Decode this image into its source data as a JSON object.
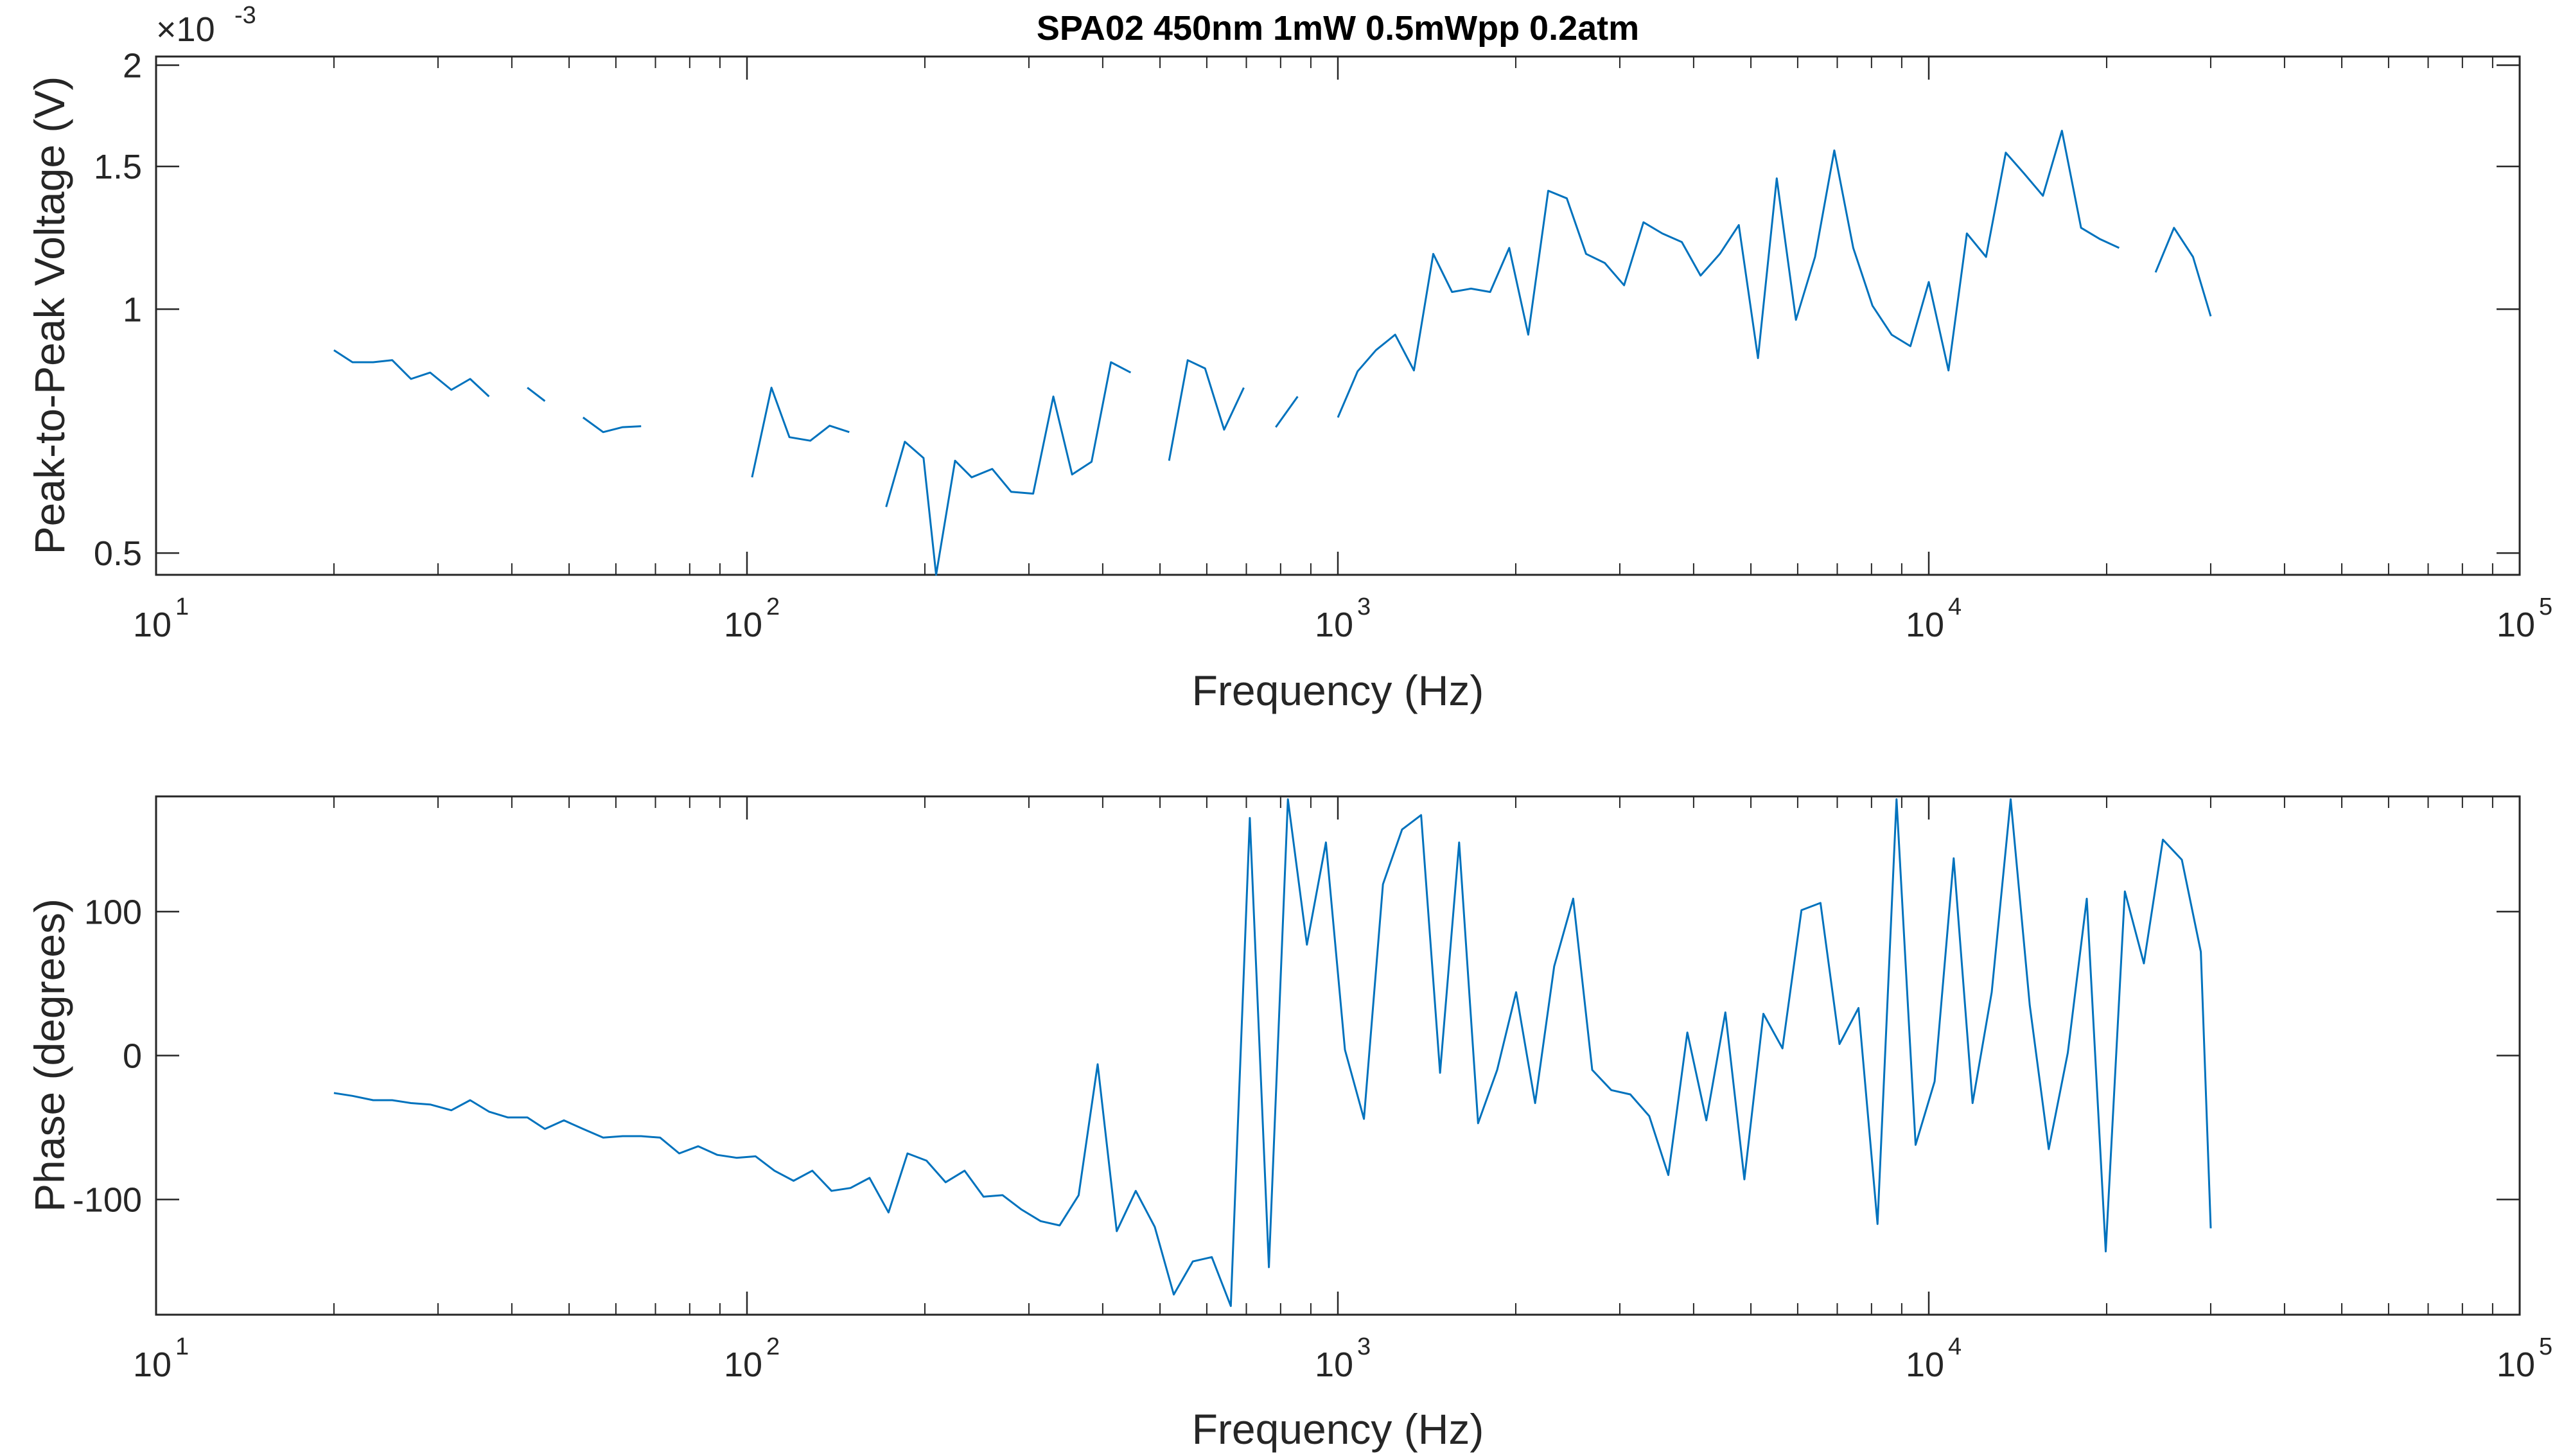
{
  "chart_data": [
    {
      "type": "line",
      "title": "SPA02 450nm 1mW 0.5mWpp 0.2atm",
      "xlabel": "Frequency (Hz)",
      "ylabel": "Peak-to-Peak Voltage (V)",
      "xscale": "log",
      "yscale": "log",
      "exponent_label": "×10",
      "exponent_value": "-3",
      "xlim": [
        10,
        100000
      ],
      "ylim": [
        0.00047,
        0.00205
      ],
      "xticks": [
        10,
        100,
        1000,
        10000,
        100000
      ],
      "xtick_base": "10",
      "xtick_exponents": [
        "1",
        "2",
        "3",
        "4",
        "5"
      ],
      "yticks": [
        0.0005,
        0.001,
        0.0015,
        0.002
      ],
      "ytick_labels": [
        "0.5",
        "1",
        "1.5",
        "2"
      ],
      "grid": false,
      "line_color": "#0072BD",
      "segments": [
        [
          [
            20,
            0.00089
          ],
          [
            21.5,
            0.00086
          ],
          [
            23.3,
            0.00086
          ],
          [
            25.1,
            0.000865
          ],
          [
            27,
            0.00082
          ],
          [
            29.1,
            0.000835
          ],
          [
            31.6,
            0.000795
          ],
          [
            34,
            0.00082
          ],
          [
            36.6,
            0.00078
          ]
        ],
        [
          [
            42.5,
            0.0008
          ],
          [
            45.5,
            0.00077
          ]
        ],
        [
          [
            52.8,
            0.000735
          ],
          [
            57.1,
            0.000705
          ],
          [
            61.6,
            0.000715
          ],
          [
            66.2,
            0.000717
          ]
        ],
        [
          [
            102,
            0.00062
          ],
          [
            110,
            0.0008
          ],
          [
            118,
            0.000695
          ],
          [
            128,
            0.000688
          ],
          [
            138,
            0.000718
          ],
          [
            149,
            0.000705
          ]
        ],
        [
          [
            172,
            0.00057
          ],
          [
            185,
            0.000686
          ],
          [
            199,
            0.000655
          ],
          [
            209,
            0.00047
          ],
          [
            225,
            0.00065
          ],
          [
            240,
            0.00062
          ],
          [
            260,
            0.000635
          ],
          [
            280,
            0.000595
          ],
          [
            305,
            0.000592
          ],
          [
            330,
            0.00078
          ],
          [
            355,
            0.000625
          ],
          [
            383,
            0.000648
          ],
          [
            413,
            0.00086
          ],
          [
            446,
            0.000835
          ]
        ],
        [
          [
            518,
            0.00065
          ],
          [
            557,
            0.000865
          ],
          [
            596,
            0.000845
          ],
          [
            642,
            0.00071
          ],
          [
            693,
            0.0008
          ]
        ],
        [
          [
            785,
            0.000715
          ],
          [
            855,
            0.00078
          ]
        ],
        [
          [
            1000,
            0.000735
          ],
          [
            1080,
            0.000838
          ],
          [
            1160,
            0.00089
          ],
          [
            1250,
            0.00093
          ],
          [
            1345,
            0.00084
          ],
          [
            1450,
            0.00117
          ],
          [
            1560,
            0.00105
          ],
          [
            1680,
            0.00106
          ],
          [
            1810,
            0.00105
          ],
          [
            1950,
            0.00119
          ],
          [
            2100,
            0.00093
          ],
          [
            2270,
            0.0014
          ],
          [
            2440,
            0.00137
          ],
          [
            2630,
            0.00117
          ],
          [
            2830,
            0.00114
          ],
          [
            3050,
            0.00107
          ],
          [
            3290,
            0.00128
          ],
          [
            3540,
            0.00124
          ],
          [
            3820,
            0.00121
          ],
          [
            4110,
            0.0011
          ],
          [
            4430,
            0.00117
          ],
          [
            4770,
            0.00127
          ],
          [
            5140,
            0.00087
          ],
          [
            5530,
            0.00145
          ],
          [
            5960,
            0.00097
          ],
          [
            6420,
            0.00116
          ],
          [
            6920,
            0.00157
          ],
          [
            7450,
            0.00119
          ],
          [
            8030,
            0.00101
          ],
          [
            8650,
            0.00093
          ],
          [
            9310,
            0.0009
          ],
          [
            10000,
            0.00108
          ],
          [
            10800,
            0.00084
          ],
          [
            11600,
            0.00124
          ],
          [
            12500,
            0.00116
          ],
          [
            13500,
            0.00156
          ],
          [
            14500,
            0.00147
          ],
          [
            15600,
            0.00138
          ],
          [
            16800,
            0.00166
          ],
          [
            18100,
            0.00126
          ],
          [
            19500,
            0.00122
          ],
          [
            21000,
            0.00119
          ]
        ],
        [
          [
            24200,
            0.00111
          ],
          [
            26000,
            0.00126
          ],
          [
            28000,
            0.00116
          ],
          [
            30000,
            0.00098
          ]
        ]
      ]
    },
    {
      "type": "line",
      "xlabel": "Frequency (Hz)",
      "ylabel": "Phase (degrees)",
      "xscale": "log",
      "xlim": [
        10,
        100000
      ],
      "ylim": [
        -180,
        180
      ],
      "xticks": [
        10,
        100,
        1000,
        10000,
        100000
      ],
      "xtick_base": "10",
      "xtick_exponents": [
        "1",
        "2",
        "3",
        "4",
        "5"
      ],
      "yticks": [
        -100,
        0,
        100
      ],
      "ytick_labels": [
        "-100",
        "0",
        "100"
      ],
      "grid": false,
      "line_color": "#0072BD",
      "x": [
        20,
        21.5,
        23.3,
        25.1,
        27,
        29.1,
        31.6,
        34,
        36.6,
        39.4,
        42.5,
        45.5,
        49,
        52.8,
        57.1,
        61.6,
        66.2,
        71.3,
        76.8,
        82.7,
        89.1,
        96,
        103.4,
        111.3,
        119.9,
        129,
        139,
        149.7,
        161.2,
        173.6,
        186.9,
        201.3,
        216.8,
        233.5,
        251.4,
        270.8,
        291.6,
        314,
        338.2,
        364.2,
        392.2,
        422.4,
        454.9,
        489.9,
        527.6,
        568.2,
        611.9,
        658.9,
        709.6,
        764.2,
        823,
        886.3,
        954.5,
        1028,
        1107,
        1192,
        1284,
        1383,
        1489,
        1604,
        1727,
        1860,
        2003,
        2157,
        2323,
        2502,
        2694,
        2902,
        3125,
        3365,
        3624,
        3903,
        4203,
        4527,
        4875,
        5250,
        5654,
        6089,
        6557,
        7062,
        7605,
        8190,
        8820,
        9499,
        10230,
        11020,
        11860,
        12780,
        13760,
        14820,
        15960,
        17190,
        18510,
        19930,
        21470,
        23120,
        24900,
        26810,
        28870,
        30000
      ],
      "y": [
        -26,
        -28,
        -31,
        -31,
        -33,
        -34,
        -38,
        -31,
        -39,
        -43,
        -43,
        -51,
        -45,
        -51,
        -57,
        -56,
        -56,
        -57,
        -68,
        -63,
        -69,
        -71,
        -70,
        -80,
        -87,
        -80,
        -94,
        -92,
        -85,
        -109,
        -68,
        -73,
        -88,
        -80,
        -98,
        -97,
        -107,
        -115,
        -118,
        -97,
        -6,
        -122,
        -94,
        -119,
        -166,
        -143,
        -140,
        -174,
        165,
        -147,
        178,
        77,
        148,
        4,
        -44,
        119,
        157,
        167,
        -12,
        148,
        -47,
        -10,
        44,
        -33,
        62,
        109,
        -10,
        -24,
        -27,
        -42,
        -83,
        16,
        -45,
        30,
        -86,
        29,
        5,
        101,
        106,
        8,
        33,
        -117,
        178,
        -62,
        -18,
        137,
        -33,
        44,
        178,
        35,
        -65,
        2,
        109,
        -136,
        114,
        64,
        150,
        136,
        72,
        -120
      ]
    }
  ]
}
